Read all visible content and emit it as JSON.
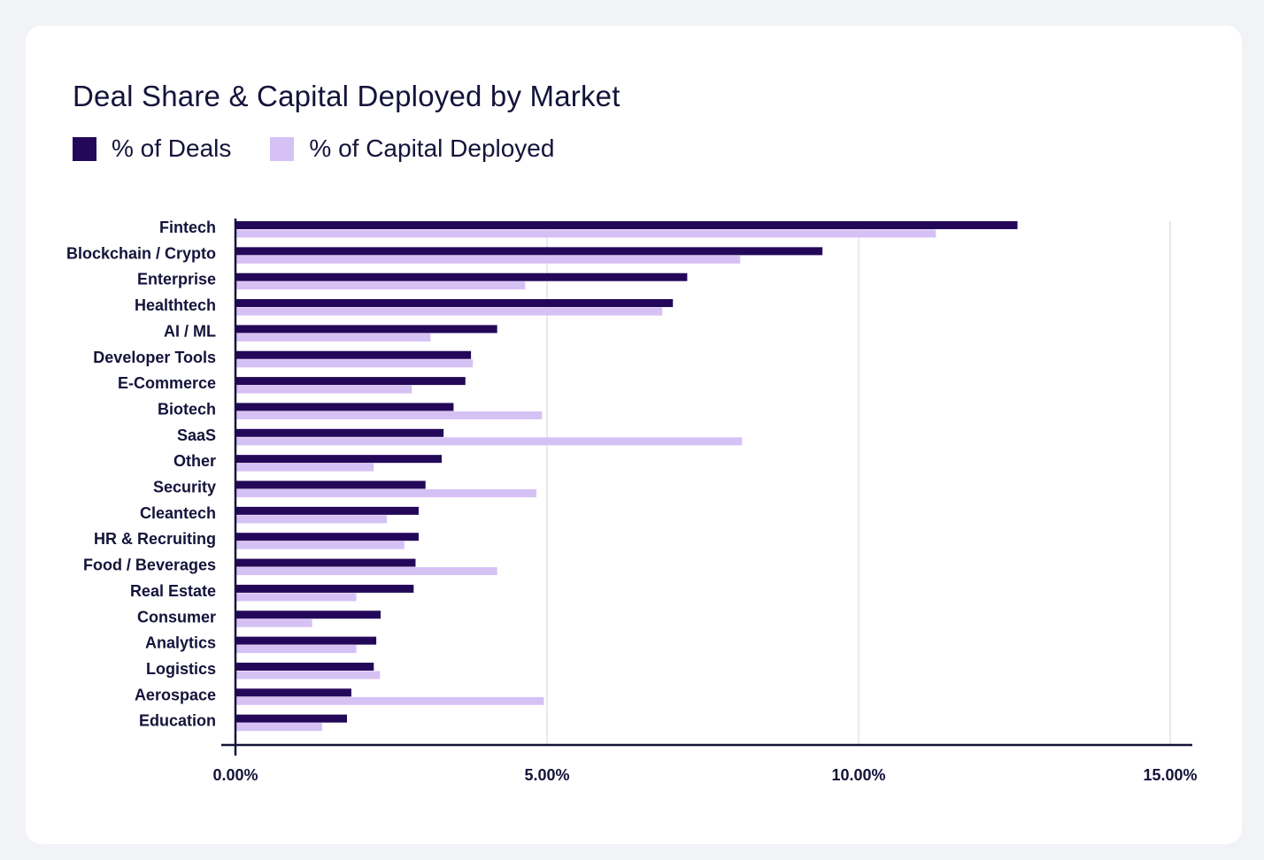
{
  "chart_data": {
    "type": "bar",
    "orientation": "horizontal",
    "title": "Deal Share & Capital Deployed by Market",
    "categories": [
      "Fintech",
      "Blockchain / Crypto",
      "Enterprise",
      "Healthtech",
      "AI / ML",
      "Developer Tools",
      "E-Commerce",
      "Biotech",
      "SaaS",
      "Other",
      "Security",
      "Cleantech",
      "HR & Recruiting",
      "Food / Beverages",
      "Real Estate",
      "Consumer",
      "Analytics",
      "Logistics",
      "Aerospace",
      "Education"
    ],
    "series": [
      {
        "name": "% of Deals",
        "color": "#23085a",
        "values": [
          12.55,
          9.42,
          7.25,
          7.02,
          4.2,
          3.78,
          3.69,
          3.5,
          3.34,
          3.31,
          3.05,
          2.94,
          2.94,
          2.89,
          2.86,
          2.33,
          2.26,
          2.22,
          1.86,
          1.79
        ]
      },
      {
        "name": "% of Capital Deployed",
        "color": "#d6c1f5",
        "values": [
          11.24,
          8.1,
          4.65,
          6.85,
          3.13,
          3.81,
          2.83,
          4.92,
          8.13,
          2.22,
          4.83,
          2.43,
          2.71,
          4.2,
          1.94,
          1.23,
          1.94,
          2.32,
          4.95,
          1.39
        ]
      }
    ],
    "xlim": [
      0,
      15
    ],
    "xticks": [
      "0.00%",
      "5.00%",
      "10.00%",
      "15.00%"
    ],
    "grid": true,
    "legend": "top-left"
  }
}
